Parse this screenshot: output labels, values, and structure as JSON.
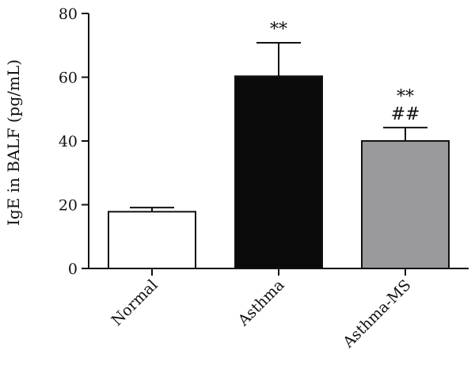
{
  "chart_data": {
    "type": "bar",
    "title": "",
    "xlabel": "",
    "ylabel": "IgE in BALF (pg/mL)",
    "ylim": [
      0,
      80
    ],
    "yticks": [
      0,
      20,
      40,
      60,
      80
    ],
    "grid": false,
    "categories": [
      "Normal",
      "Asthma",
      "Asthma-MS"
    ],
    "values": [
      17.8,
      60.3,
      40.0
    ],
    "errors": [
      1.3,
      10.5,
      4.2
    ],
    "colors": [
      "#ffffff",
      "#0a0a0a",
      "#9a9a9c"
    ],
    "annotations": [
      [],
      [
        "**"
      ],
      [
        "**",
        "##"
      ]
    ]
  }
}
